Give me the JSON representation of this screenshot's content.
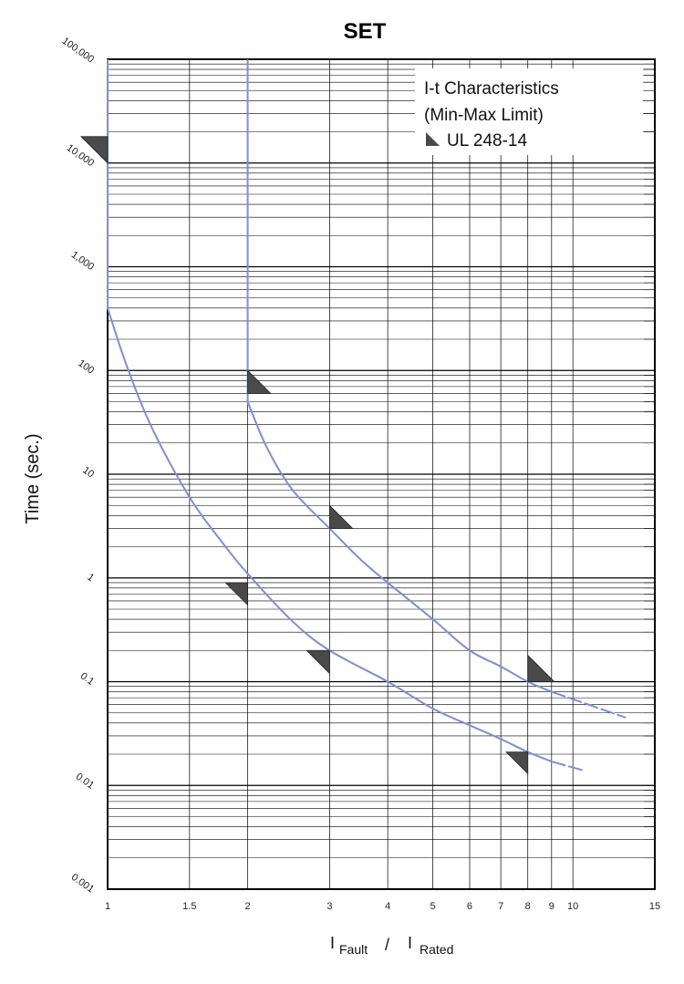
{
  "chart_data": {
    "type": "line",
    "title": "SET",
    "ylabel": "Time (sec.)",
    "xlabel": {
      "numerator_prefix": "I",
      "numerator_sub": "Fault",
      "slash": "/",
      "denominator_prefix": "I",
      "denominator_sub": "Rated"
    },
    "x_scale": "log",
    "y_scale": "log",
    "xlim": [
      1,
      15
    ],
    "ylim": [
      0.001,
      100000
    ],
    "x_ticks": [
      {
        "value": 1,
        "label": "1"
      },
      {
        "value": 1.5,
        "label": "1.5"
      },
      {
        "value": 2,
        "label": "2"
      },
      {
        "value": 3,
        "label": "3"
      },
      {
        "value": 4,
        "label": "4"
      },
      {
        "value": 5,
        "label": "5"
      },
      {
        "value": 6,
        "label": "6"
      },
      {
        "value": 7,
        "label": "7"
      },
      {
        "value": 8,
        "label": "8"
      },
      {
        "value": 9,
        "label": "9"
      },
      {
        "value": 10,
        "label": "10"
      },
      {
        "value": 15,
        "label": "15"
      }
    ],
    "y_ticks": [
      {
        "value": 100000,
        "label": "100,000"
      },
      {
        "value": 10000,
        "label": "10,000"
      },
      {
        "value": 1000,
        "label": "1,000"
      },
      {
        "value": 100,
        "label": "100"
      },
      {
        "value": 10,
        "label": "10"
      },
      {
        "value": 1,
        "label": "1"
      },
      {
        "value": 0.1,
        "label": "0.1"
      },
      {
        "value": 0.01,
        "label": "0.01"
      },
      {
        "value": 0.001,
        "label": "0.001"
      }
    ],
    "grid": true,
    "legend": {
      "placement": "top-right",
      "lines": [
        "I-t Characteristics",
        "(Min-Max Limit)"
      ],
      "marker_label": "UL 248-14"
    },
    "line_color": "#7d8fcf",
    "marker_color": "#4a4a4a",
    "series": [
      {
        "vertical_at_x": 1,
        "vertical_from_y": 100000,
        "x": [
          1,
          1.1,
          1.25,
          1.5,
          1.75,
          2,
          2.5,
          3,
          4,
          5,
          6,
          7,
          8,
          9
        ],
        "y": [
          400,
          110,
          27,
          6,
          2.3,
          1.1,
          0.38,
          0.2,
          0.1,
          0.055,
          0.038,
          0.028,
          0.021,
          0.017
        ],
        "dashed_x": [
          9,
          10.5
        ],
        "dashed_y": [
          0.017,
          0.014
        ]
      },
      {
        "vertical_at_x": 2,
        "vertical_from_y": 100000,
        "x": [
          2,
          2.2,
          2.5,
          3,
          3.5,
          4,
          5,
          6,
          7,
          8,
          9
        ],
        "y": [
          50,
          18,
          7,
          3,
          1.5,
          0.9,
          0.4,
          0.2,
          0.14,
          0.1,
          0.08
        ],
        "dashed_x": [
          9,
          13
        ],
        "dashed_y": [
          0.08,
          0.045
        ]
      }
    ],
    "ul_markers": [
      {
        "x": 1,
        "y": 10000,
        "side": "left",
        "y_top": 18000,
        "y_bot": 10000
      },
      {
        "x": 2,
        "y": 60,
        "side": "right",
        "y_top": 100,
        "y_bot": 60
      },
      {
        "x": 3,
        "y": 3,
        "side": "right",
        "y_top": 5,
        "y_bot": 3
      },
      {
        "x": 8,
        "y": 0.1,
        "side": "right",
        "y_top": 0.18,
        "y_bot": 0.1
      },
      {
        "x": 2,
        "y": 0.9,
        "side": "left",
        "y_top": 0.9,
        "y_bot": 0.55
      },
      {
        "x": 3,
        "y": 0.2,
        "side": "left",
        "y_top": 0.2,
        "y_bot": 0.12
      },
      {
        "x": 8,
        "y": 0.021,
        "side": "left",
        "y_top": 0.021,
        "y_bot": 0.013
      }
    ]
  }
}
